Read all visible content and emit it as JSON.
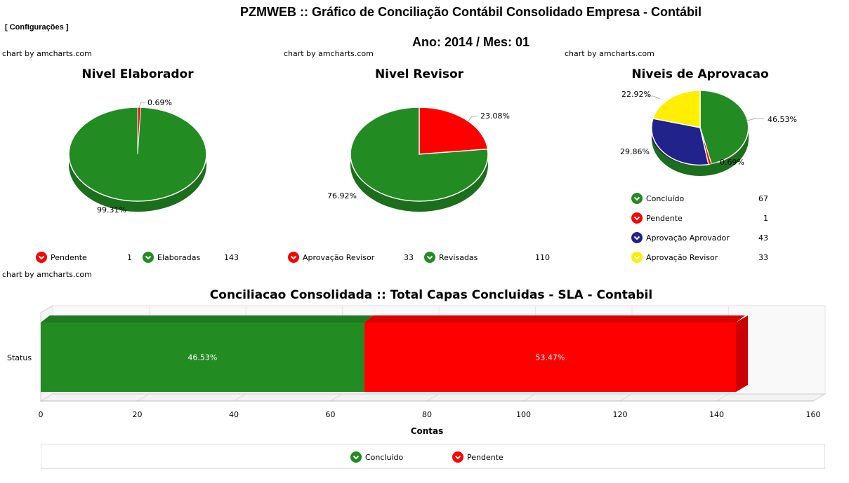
{
  "header": {
    "title": "PZMWEB :: Gráfico de Conciliação Contábil Consolidado Empresa - Contábil",
    "config_link": "[ Configurações ]",
    "period": "Ano: 2014 / Mes: 01",
    "credit": "chart by amcharts.com"
  },
  "colors": {
    "green": "#228B22",
    "red": "#FF0000",
    "navy": "#22228B",
    "yellow": "#FFEE00"
  },
  "chart_data": [
    {
      "type": "pie",
      "title": "Nivel Elaborador",
      "slices": [
        {
          "name": "Pendente",
          "value": 1,
          "percent": "0.69%",
          "color": "#E41010"
        },
        {
          "name": "Elaboradas",
          "value": 143,
          "percent": "99.31%",
          "color": "#228B22"
        }
      ]
    },
    {
      "type": "pie",
      "title": "Nivel Revisor",
      "slices": [
        {
          "name": "Aprovação Revisor",
          "value": 33,
          "percent": "23.08%",
          "color": "#FF0000"
        },
        {
          "name": "Revisadas",
          "value": 110,
          "percent": "76.92%",
          "color": "#228B22"
        }
      ]
    },
    {
      "type": "pie",
      "title": "Niveis de Aprovacao",
      "slices": [
        {
          "name": "Concluído",
          "value": 67,
          "percent": "46.53%",
          "color": "#228B22"
        },
        {
          "name": "Pendente",
          "value": 1,
          "percent": "0.69%",
          "color": "#FF0000"
        },
        {
          "name": "Aprovação Aprovador",
          "value": 43,
          "percent": "29.86%",
          "color": "#22228B"
        },
        {
          "name": "Aprovação Revisor",
          "value": 33,
          "percent": "22.92%",
          "color": "#FFEE00"
        }
      ]
    },
    {
      "type": "bar",
      "title": "Conciliacao Consolidada :: Total Capas Concluidas - SLA - Contabil",
      "categories": [
        "Status"
      ],
      "series": [
        {
          "name": "Concluido",
          "values": [
            67
          ],
          "percent": "46.53%",
          "color": "#228B22"
        },
        {
          "name": "Pendente",
          "values": [
            77
          ],
          "percent": "53.47%",
          "color": "#FF0000"
        }
      ],
      "xlabel": "Contas",
      "xlim": [
        0,
        160
      ],
      "xticks": [
        "0",
        "20",
        "40",
        "60",
        "80",
        "100",
        "120",
        "140",
        "160"
      ],
      "stacked": true,
      "grid": true,
      "legend": "bottom"
    }
  ]
}
